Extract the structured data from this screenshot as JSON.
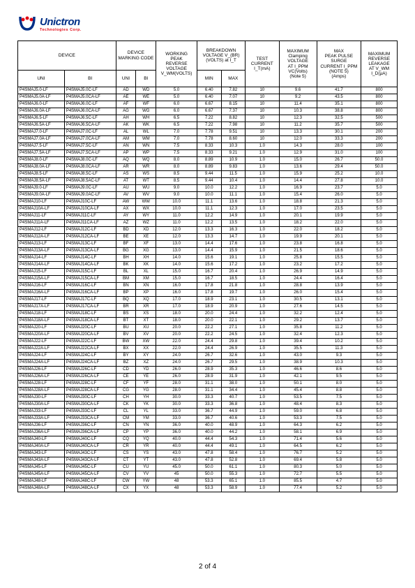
{
  "logo": {
    "name": "Unictron",
    "sub": "Technologies Corp."
  },
  "headers": {
    "device": "DEVICE",
    "marking": "DEVICE\nMARKING CODE",
    "wpv": "WORKING\nPEAK\nREVERSE\nVOLTAGE\nV_WM(VOLTS)",
    "bv": "BREAKDOWN\nVOLTAGE V_(BR)\n(VOLTS) at I_T",
    "test": "TEST\nCURRENT\nI_T(mA)",
    "clamp": "MAXIMUM\nClamping\nVOLTAGE\nAT I_PPM\nVC(Volts)\n(Note 5)",
    "ppm": "MAX\nPEAK PULSE\nSURGE\nCURRENT I_PPM\n(NOTE 5)\n(Amps)",
    "leak": "MAXIMUM\nREVERSE\nLEAKAGE\nAT V_WM\nI_D(μA)",
    "uni": "UNI",
    "bi": "BI",
    "min": "MIN",
    "max": "MAX"
  },
  "rows": [
    [
      "P4SMAJ5.0-LF",
      "P4SMAJ5.0C-LF",
      "AD",
      "WD",
      "5.0",
      "6.40",
      "7.82",
      "10",
      "9.6",
      "41.7",
      "800"
    ],
    [
      "P4SMAJ5.0A-LF",
      "P4SMAJ5.0CA-LF",
      "AE",
      "WE",
      "5.0",
      "6.40",
      "7.07",
      "10",
      "9.2",
      "43.5",
      "800"
    ],
    [
      "P4SMAJ6.0-LF",
      "P4SMAJ6.0C-LF",
      "AF",
      "WF",
      "6.0",
      "6.67",
      "8.15",
      "10",
      "11.4",
      "35.1",
      "800"
    ],
    [
      "P4SMAJ6.0A-LF",
      "P4SMAJ6.0CA-LF",
      "AG",
      "WG",
      "6.0",
      "6.67",
      "7.37",
      "10",
      "10.3",
      "38.8",
      "800"
    ],
    [
      "P4SMAJ6.5-LF",
      "P4SMAJ6.5C-LF",
      "AH",
      "WH",
      "6.5",
      "7.22",
      "8.82",
      "10",
      "12.3",
      "32.5",
      "500"
    ],
    [
      "P4SMAJ6.5A-LF",
      "P4SMAJ6.5CA-LF",
      "AK",
      "WK",
      "6.5",
      "7.22",
      "7.98",
      "10",
      "11.2",
      "35.7",
      "500"
    ],
    [
      "P4SMAJ7.0-LF",
      "P4SMAJ7.0C-LF",
      "AL",
      "WL",
      "7.0",
      "7.78",
      "9.51",
      "10",
      "13.3",
      "30.1",
      "200"
    ],
    [
      "P4SMAJ7.0A-LF",
      "P4SMAJ7.0CA-LF",
      "AM",
      "WM",
      "7.0",
      "7.78",
      "8.60",
      "10",
      "12.0",
      "33.3",
      "200"
    ],
    [
      "P4SMAJ7.5-LF",
      "P4SMAJ7.5C-LF",
      "AN",
      "WN",
      "7.5",
      "8.33",
      "10.3",
      "1.0",
      "14.3",
      "28.0",
      "100"
    ],
    [
      "P4SMAJ7.5A-LF",
      "P4SMAJ7.5CA-LF",
      "AP",
      "WP",
      "7.5",
      "8.33",
      "9.21",
      "1.0",
      "12.9",
      "31.0",
      "100"
    ],
    [
      "P4SMAJ8.0-LF",
      "P4SMAJ8.0C-LF",
      "AQ",
      "WQ",
      "8.0",
      "8.89",
      "10.9",
      "1.0",
      "15.0",
      "26.7",
      "50.0"
    ],
    [
      "P4SMAJ8.0A-LF",
      "P4SMAJ8.0CA-LF",
      "AR",
      "WR",
      "8.0",
      "8.89",
      "9.83",
      "1.0",
      "13.6",
      "29.4",
      "50.0"
    ],
    [
      "P4SMAJ8.5-LF",
      "P4SMAJ8.5C-LF",
      "AS",
      "WS",
      "8.5",
      "9.44",
      "11.5",
      "1.0",
      "15.9",
      "25.2",
      "10.0"
    ],
    [
      "P4SMAJ8.5A-LF",
      "P4SMAJ8.5AC-LF",
      "AT",
      "WT",
      "8.5",
      "9.44",
      "10.4",
      "1.0",
      "14.4",
      "27.8",
      "10.0"
    ],
    [
      "P4SMAJ9.0-LF",
      "P4SMAJ9.0C-LF",
      "AU",
      "WU",
      "9.0",
      "10.0",
      "12.2",
      "1.0",
      "16.9",
      "23.7",
      "5.0"
    ],
    [
      "P4SMAJ9.0A-LF",
      "P4SMAJ9.0AC-LF",
      "AV",
      "WV",
      "9.0",
      "10.0",
      "11.1",
      "1.0",
      "15.4",
      "26.0",
      "5.0"
    ],
    [
      "P4SMAJ10-LF",
      "P4SMAJ10C-LF",
      "AW",
      "WW",
      "10.0",
      "11.1",
      "13.6",
      "1.0",
      "18.8",
      "21.3",
      "5.0"
    ],
    [
      "P4SMAJ10A-LF",
      "P4SMAJ10CA-LF",
      "AX",
      "WX",
      "10.0",
      "11.1",
      "12.3",
      "1.0",
      "17.0",
      "23.5",
      "5.0"
    ],
    [
      "P4SMAJ11-LF",
      "P4SMAJ11C-LF",
      "AY",
      "WY",
      "11.0",
      "12.2",
      "14.9",
      "1.0",
      "20.1",
      "19.9",
      "5.0"
    ],
    [
      "P4SMAJ11A-LF",
      "P4SMAJ11CA-LF",
      "AZ",
      "WZ",
      "11.0",
      "12.2",
      "13.5",
      "1.0",
      "18.2",
      "22.0",
      "5.0"
    ],
    [
      "P4SMAJ12-LF",
      "P4SMAJ12C-LF",
      "BD",
      "XD",
      "12.0",
      "13.3",
      "16.3",
      "1.0",
      "22.0",
      "18.2",
      "5.0"
    ],
    [
      "P4SMAJ12A-LF",
      "P4SMAJ12CA-LF",
      "BE",
      "XE",
      "12.0",
      "13.3",
      "14.7",
      "1.0",
      "19.9",
      "20.1",
      "5.0"
    ],
    [
      "P4SMAJ13-LF",
      "P4SMAJ13C-LF",
      "BF",
      "XF",
      "13.0",
      "14.4",
      "17.6",
      "1.0",
      "23.8",
      "16.8",
      "5.0"
    ],
    [
      "P4SMAJ13A-LF",
      "P4SMAJ13CA-LF",
      "BG",
      "XG",
      "13.0",
      "14.4",
      "15.9",
      "1.0",
      "21.5",
      "18.6",
      "5.0"
    ],
    [
      "P4SMAJ14-LF",
      "P4SMAJ14C-LF",
      "BH",
      "XH",
      "14.0",
      "15.6",
      "19.1",
      "1.0",
      "25.8",
      "15.5",
      "5.0"
    ],
    [
      "P4SMAJ14A-LF",
      "P4SMAJ14CA-LF",
      "BK",
      "XK",
      "14.0",
      "15.6",
      "17.2",
      "1.0",
      "23.2",
      "17.2",
      "5.0"
    ],
    [
      "P4SMAJ15-LF",
      "P4SMAJ15C-LF",
      "BL",
      "XL",
      "15.0",
      "16.7",
      "20.4",
      "1.0",
      "26.9",
      "14.9",
      "5.0"
    ],
    [
      "P4SMAJ15A-LF",
      "P4SMAJ15CA-LF",
      "BM",
      "XM",
      "15.0",
      "16.7",
      "18.5",
      "1.0",
      "24.4",
      "16.4",
      "5.0"
    ],
    [
      "P4SMAJ16-LF",
      "P4SMAJ16C-LF",
      "BN",
      "XN",
      "16.0",
      "17.8",
      "21.8",
      "1.0",
      "28.8",
      "13.9",
      "5.0"
    ],
    [
      "P4SMAJ16A-LF",
      "P4SMAJ16CA-LF",
      "BP",
      "XP",
      "16.0",
      "17.8",
      "19.7",
      "1.0",
      "26.0",
      "15.4",
      "5.0"
    ],
    [
      "P4SMAJ17-LF",
      "P4SMAJ17C-LF",
      "BQ",
      "XQ",
      "17.0",
      "18.9",
      "23.1",
      "1.0",
      "30.5",
      "13.1",
      "5.0"
    ],
    [
      "P4SMAJ17A-LF",
      "P4SMAJ17CA-LF",
      "BR",
      "XR",
      "17.0",
      "18.9",
      "20.9",
      "1.0",
      "27.6",
      "14.5",
      "5.0"
    ],
    [
      "P4SMAJ18-LF",
      "P4SMAJ18C-LF",
      "BS",
      "XS",
      "18.0",
      "20.0",
      "24.4",
      "1.0",
      "32.2",
      "12.4",
      "5.0"
    ],
    [
      "P4SMAJ18A-LF",
      "P4SMAJ18CA-LF",
      "BT",
      "XT",
      "18.0",
      "20.0",
      "22.1",
      "1.0",
      "29.2",
      "13.7",
      "5.0"
    ],
    [
      "P4SMAJ20-LF",
      "P4SMAJ20C-LF",
      "BU",
      "XU",
      "20.0",
      "22.2",
      "27.1",
      "1.0",
      "35.8",
      "11.2",
      "5.0"
    ],
    [
      "P4SMAJ20A-LF",
      "P4SMAJ20CA-LF",
      "BV",
      "XV",
      "20.0",
      "22.2",
      "24.5",
      "1.0",
      "32.4",
      "12.3",
      "5.0"
    ],
    [
      "P4SMAJ22-LF",
      "P4SMAJ22C-LF",
      "BW",
      "XW",
      "22.0",
      "24.4",
      "29.8",
      "1.0",
      "39.4",
      "10.2",
      "5.0"
    ],
    [
      "P4SMAJ22A-LF",
      "P4SMAJ22CA-LF",
      "BX",
      "XX",
      "22.0",
      "24.4",
      "26.9",
      "1.0",
      "35.5",
      "11.3",
      "5.0"
    ],
    [
      "P4SMAJ24-LF",
      "P4SMAJ24C-LF",
      "BY",
      "XY",
      "24.0",
      "26.7",
      "32.6",
      "1.0",
      "43.0",
      "9.3",
      "5.0"
    ],
    [
      "P4SMAJ24A-LF",
      "P4SMAJ24CA-LF",
      "BZ",
      "XZ",
      "24.0",
      "26.7",
      "29.5",
      "1.0",
      "38.9",
      "10.3",
      "5.0"
    ],
    [
      "P4SMAJ26-LF",
      "P4SMAJ26C-LF",
      "CD",
      "YD",
      "26.0",
      "28.9",
      "35.3",
      "1.0",
      "46.6",
      "8.6",
      "5.0"
    ],
    [
      "P4SMAJ26A-LF",
      "P4SMAJ26CA-LF",
      "CE",
      "YE",
      "26.0",
      "28.9",
      "31.9",
      "1.0",
      "42.1",
      "9.5",
      "5.0"
    ],
    [
      "P4SMAJ28-LF",
      "P4SMAJ28C-LF",
      "CF",
      "YF",
      "28.0",
      "31.1",
      "38.0",
      "1.0",
      "50.1",
      "8.0",
      "5.0"
    ],
    [
      "P4SMAJ28A-LF",
      "P4SMAJ28CA-LF",
      "CG",
      "YG",
      "28.0",
      "31.1",
      "34.4",
      "1.0",
      "45.4",
      "8.8",
      "5.0"
    ],
    [
      "P4SMAJ30-LF",
      "P4SMAJ30C-LF",
      "CH",
      "YH",
      "30.0",
      "33.3",
      "40.7",
      "1.0",
      "53.5",
      "7.5",
      "5.0"
    ],
    [
      "P4SMAJ30A-LF",
      "P4SMAJ30CA-LF",
      "CK",
      "YK",
      "30.0",
      "33.3",
      "36.8",
      "1.0",
      "48.4",
      "8.3",
      "5.0"
    ],
    [
      "P4SMAJ33-LF",
      "P4SMAJ33C-LF",
      "CL",
      "YL",
      "33.0",
      "36.7",
      "44.9",
      "1.0",
      "59.0",
      "6.8",
      "5.0"
    ],
    [
      "P4SMAJ33A-LF",
      "P4SMAJ33CA-LF",
      "CM",
      "YM",
      "33.0",
      "36.7",
      "40.6",
      "1.0",
      "53.3",
      "7.5",
      "5.0"
    ],
    [
      "P4SMAJ36-LF",
      "P4SMAJ36C-LF",
      "CN",
      "YN",
      "36.0",
      "40.0",
      "48.9",
      "1.0",
      "64.3",
      "6.2",
      "5.0"
    ],
    [
      "P4SMAJ36A-LF",
      "P4SMAJ36CA-LF",
      "CP",
      "YP",
      "36.0",
      "40.0",
      "44.2",
      "1.0",
      "58.1",
      "6.9",
      "5.0"
    ],
    [
      "P4SMAJ40-LF",
      "P4SMAJ40C-LF",
      "CQ",
      "YQ",
      "40.0",
      "44.4",
      "54.3",
      "1.0",
      "71.4",
      "5.6",
      "5.0"
    ],
    [
      "P4SMAJ40A-LF",
      "P4SMAJ40CA-LF",
      "CR",
      "YR",
      "40.0",
      "44.4",
      "49.1",
      "1.0",
      "64.5",
      "6.2",
      "5.0"
    ],
    [
      "P4SMAJ43-LF",
      "P4SMAJ43C-LF",
      "CS",
      "YS",
      "43.0",
      "47.8",
      "58.4",
      "1.0",
      "76.7",
      "5.2",
      "5.0"
    ],
    [
      "P4SMAJ43A-LF",
      "P4SMAJ43CA-LF",
      "CT",
      "YT",
      "43.0",
      "47.8",
      "52.8",
      "1.0",
      "69.4",
      "5.8",
      "5.0"
    ],
    [
      "P4SMAJ45-LF",
      "P4SMAJ45C-LF",
      "CU",
      "YU",
      "45.0",
      "50.0",
      "61.1",
      "1.0",
      "80.3",
      "5.0",
      "5.0"
    ],
    [
      "P4SMAJ45A-LF",
      "P4SMAJ45CA-LF",
      "CV",
      "YV",
      "45",
      "50.0",
      "55.3",
      "1.0",
      "72.7",
      "5.5",
      "5.0"
    ],
    [
      "P4SMAJ48-LF",
      "P4SMAJ48C-LF",
      "CW",
      "YW",
      "48",
      "53.3",
      "65.1",
      "1.0",
      "85.5",
      "4.7",
      "5.0"
    ],
    [
      "P4SMAJ48A-LF",
      "P4SMAJ48CA-LF",
      "CX",
      "YX",
      "48",
      "53.3",
      "58.9",
      "1.0",
      "77.4",
      "5.2",
      "5.0"
    ]
  ],
  "footer": "2 of 4"
}
